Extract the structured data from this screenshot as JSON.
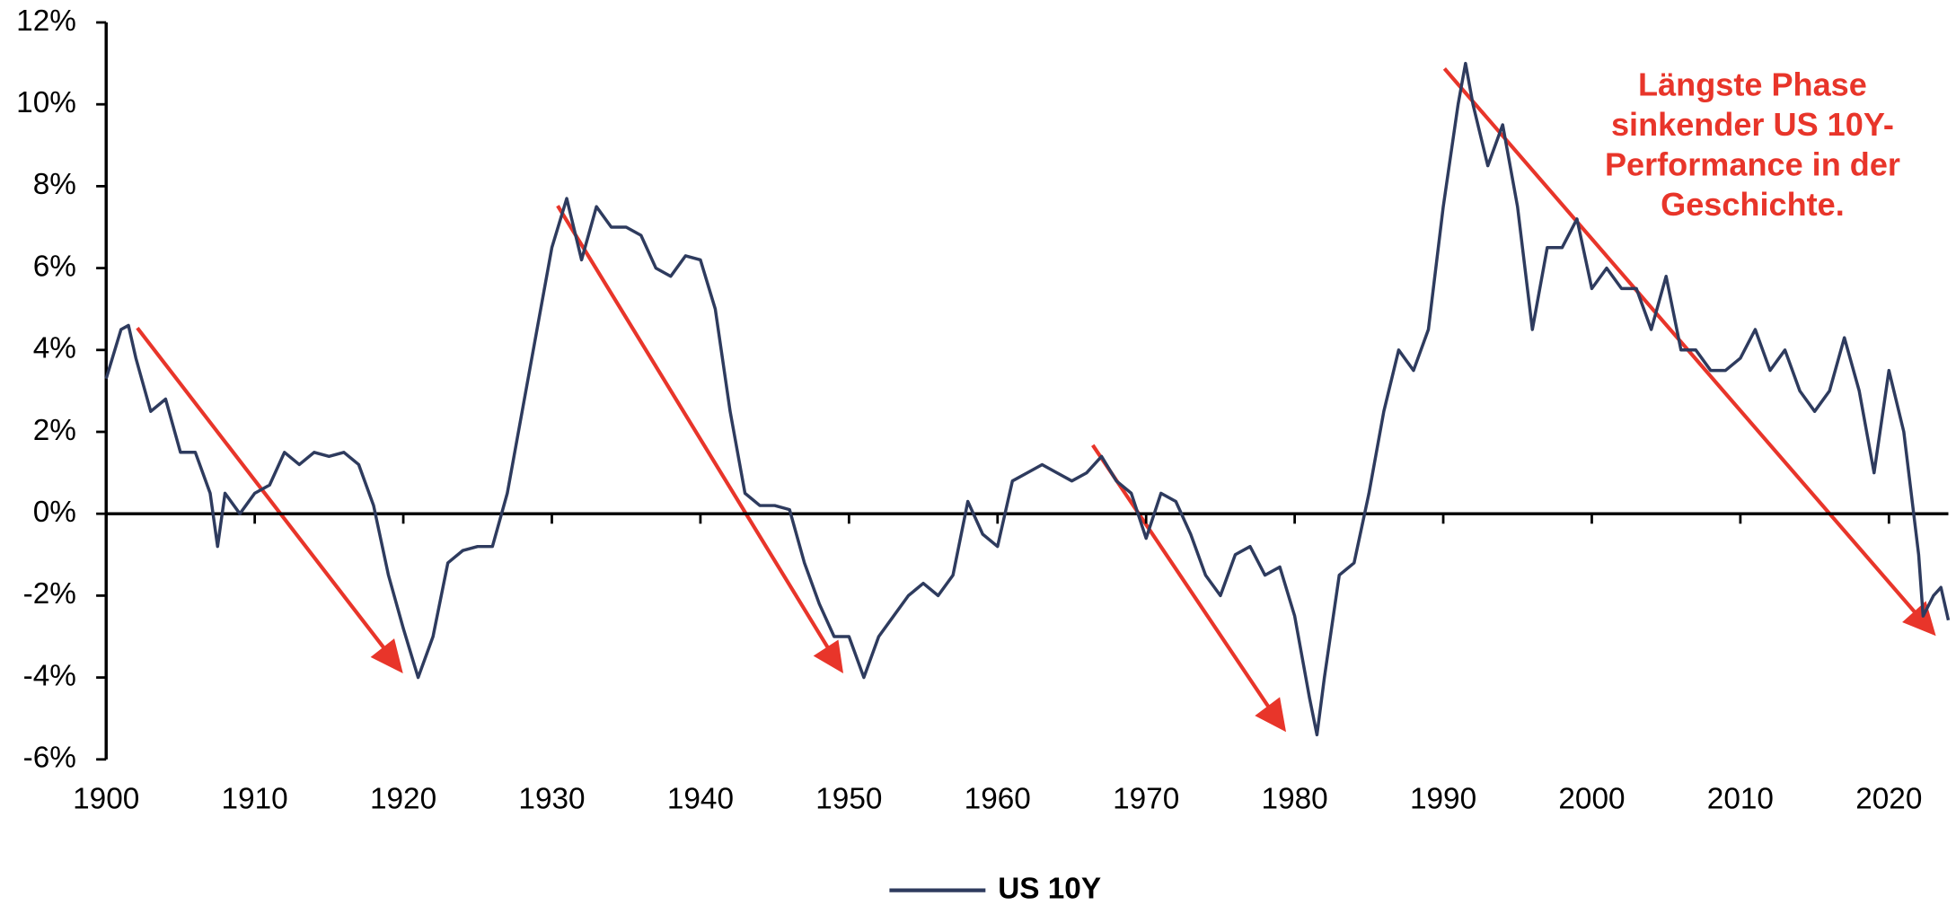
{
  "chart_data": {
    "type": "line",
    "x": [
      1900,
      1901,
      1901.5,
      1902,
      1903,
      1904,
      1905,
      1906,
      1907,
      1907.5,
      1908,
      1909,
      1910,
      1911,
      1912,
      1913,
      1914,
      1915,
      1916,
      1917,
      1918,
      1919,
      1920,
      1921,
      1922,
      1923,
      1924,
      1925,
      1926,
      1927,
      1928,
      1929,
      1930,
      1931,
      1932,
      1933,
      1934,
      1935,
      1936,
      1937,
      1938,
      1939,
      1940,
      1941,
      1942,
      1943,
      1944,
      1945,
      1946,
      1947,
      1948,
      1949,
      1950,
      1951,
      1952,
      1953,
      1954,
      1955,
      1956,
      1957,
      1958,
      1959,
      1960,
      1961,
      1962,
      1963,
      1964,
      1965,
      1966,
      1967,
      1968,
      1969,
      1970,
      1971,
      1972,
      1973,
      1974,
      1975,
      1976,
      1977,
      1978,
      1979,
      1980,
      1981,
      1981.5,
      1982,
      1983,
      1984,
      1985,
      1986,
      1987,
      1988,
      1989,
      1990,
      1991,
      1991.5,
      1992,
      1993,
      1994,
      1995,
      1996,
      1997,
      1998,
      1999,
      2000,
      2001,
      2002,
      2003,
      2004,
      2005,
      2006,
      2007,
      2008,
      2009,
      2010,
      2011,
      2012,
      2013,
      2014,
      2015,
      2016,
      2017,
      2018,
      2019,
      2020,
      2021,
      2022,
      2022.3,
      2023,
      2023.5,
      2024
    ],
    "series": [
      {
        "name": "US 10Y",
        "color": "#2e3b5e",
        "values": [
          3.3,
          4.5,
          4.6,
          3.8,
          2.5,
          2.8,
          1.5,
          1.5,
          0.5,
          -0.8,
          0.5,
          0,
          0.5,
          0.7,
          1.5,
          1.2,
          1.5,
          1.4,
          1.5,
          1.2,
          0.2,
          -1.5,
          -2.8,
          -4.0,
          -3.0,
          -1.2,
          -0.9,
          -0.8,
          -0.8,
          0.5,
          2.5,
          4.5,
          6.5,
          7.7,
          6.2,
          7.5,
          7.0,
          7.0,
          6.8,
          6.0,
          5.8,
          6.3,
          6.2,
          5.0,
          2.5,
          0.5,
          0.2,
          0.2,
          0.1,
          -1.2,
          -2.2,
          -3.0,
          -3.0,
          -4.0,
          -3.0,
          -2.5,
          -2.0,
          -1.7,
          -2.0,
          -1.5,
          0.3,
          -0.5,
          -0.8,
          0.8,
          1.0,
          1.2,
          1.0,
          0.8,
          1.0,
          1.4,
          0.8,
          0.5,
          -0.6,
          0.5,
          0.3,
          -0.5,
          -1.5,
          -2.0,
          -1.0,
          -0.8,
          -1.5,
          -1.3,
          -2.5,
          -4.5,
          -5.4,
          -4.0,
          -1.5,
          -1.2,
          0.5,
          2.5,
          4.0,
          3.5,
          4.5,
          7.5,
          10.0,
          11.0,
          10.0,
          8.5,
          9.5,
          7.5,
          4.5,
          6.5,
          6.5,
          7.2,
          5.5,
          6.0,
          5.5,
          5.5,
          4.5,
          5.8,
          4.0,
          4.0,
          3.5,
          3.5,
          3.8,
          4.5,
          3.5,
          4.0,
          3.0,
          2.5,
          3.0,
          4.3,
          3.0,
          1.0,
          3.5,
          2.0,
          -1.0,
          -2.5,
          -2.0,
          -1.8,
          -2.6
        ]
      }
    ],
    "xlim": [
      1900,
      2024
    ],
    "xticks": [
      1900,
      1910,
      1920,
      1930,
      1940,
      1950,
      1960,
      1970,
      1980,
      1990,
      2000,
      2010,
      2020
    ],
    "ylim": [
      -6,
      12
    ],
    "yticks": [
      {
        "value": -6,
        "label": "-6%"
      },
      {
        "value": -4,
        "label": "-4%"
      },
      {
        "value": -2,
        "label": "-2%"
      },
      {
        "value": 0,
        "label": "0%"
      },
      {
        "value": 2,
        "label": "2%"
      },
      {
        "value": 4,
        "label": "4%"
      },
      {
        "value": 6,
        "label": "6%"
      },
      {
        "value": 8,
        "label": "8%"
      },
      {
        "value": 10,
        "label": "10%"
      },
      {
        "value": 12,
        "label": "12%"
      }
    ],
    "annotation": [
      "Längste Phase",
      "sinkender US 10Y-",
      "Performance in der",
      "Geschichte."
    ],
    "legend": "bottom"
  }
}
